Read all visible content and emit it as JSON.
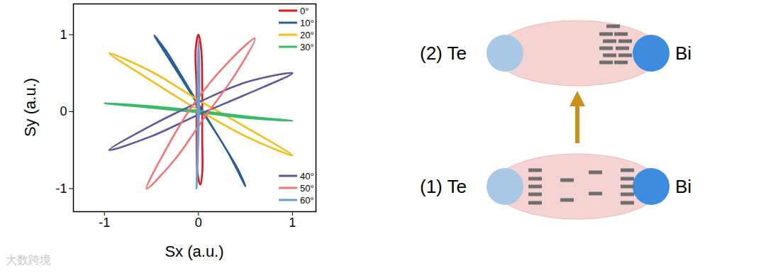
{
  "chart_data": {
    "type": "line",
    "x_label": "Sx (a.u.)",
    "y_label": "Sy (a.u.)",
    "xlim": [
      -1.33,
      1.25
    ],
    "ylim": [
      -1.3,
      1.4
    ],
    "xticks": [
      -1,
      0,
      1
    ],
    "yticks": [
      -1,
      0,
      1
    ],
    "legend": "right",
    "series": [
      {
        "name": "0°",
        "color": "#e0141e",
        "x": [
          0,
          0.03,
          0.04,
          0.04,
          0.04,
          0.02,
          -0.01,
          -0.02,
          -0.02,
          -0.03
        ],
        "y": [
          1,
          0.8,
          0.3,
          -0.3,
          -0.8,
          -0.95,
          -0.8,
          -0.3,
          0.3,
          0.8
        ]
      },
      {
        "name": "10°",
        "color": "#2b5d96",
        "x": [
          -0.47,
          -0.3,
          0,
          0.3,
          0.5,
          0.42,
          0.15,
          -0.1,
          -0.35
        ],
        "y": [
          0.99,
          0.66,
          0.08,
          -0.5,
          -0.97,
          -0.75,
          -0.2,
          0.3,
          0.8
        ]
      },
      {
        "name": "20°",
        "color": "#f2bd1d",
        "x": [
          -0.95,
          -0.5,
          0,
          0.5,
          1,
          0.5,
          0,
          -0.5
        ],
        "y": [
          0.76,
          0.52,
          0.15,
          -0.2,
          -0.57,
          -0.32,
          0.02,
          0.4
        ]
      },
      {
        "name": "30°",
        "color": "#3cba6a",
        "x": [
          -1,
          -0.5,
          0,
          0.5,
          1,
          0.5,
          0,
          -0.5
        ],
        "y": [
          0.11,
          0.07,
          0.01,
          -0.06,
          -0.12,
          -0.08,
          -0.01,
          0.05
        ]
      },
      {
        "name": "40°",
        "color": "#5c5a96",
        "x": [
          -0.95,
          -0.5,
          0,
          0.5,
          1,
          0.5,
          0,
          -0.5
        ],
        "y": [
          -0.5,
          -0.18,
          0.12,
          0.38,
          0.5,
          0.22,
          -0.04,
          -0.32
        ]
      },
      {
        "name": "50°",
        "color": "#f27474",
        "x": [
          -0.55,
          -0.35,
          -0.05,
          0.3,
          0.6,
          0.4,
          0.05,
          -0.25
        ],
        "y": [
          -1,
          -0.5,
          0.1,
          0.62,
          0.95,
          0.5,
          -0.1,
          -0.62
        ]
      },
      {
        "name": "60°",
        "color": "#6a9fd0",
        "x": [
          0,
          0.01,
          0,
          -0.02,
          -0.01,
          -0.01
        ],
        "y": [
          0.92,
          0.4,
          -0.3,
          -1,
          -0.3,
          0.4
        ]
      }
    ]
  },
  "diagram": {
    "panels": [
      {
        "label": "(2)",
        "left": "Te",
        "right": "Bi"
      },
      {
        "label": "(1)",
        "left": "Te",
        "right": "Bi"
      }
    ]
  },
  "watermark": "大数跨境"
}
